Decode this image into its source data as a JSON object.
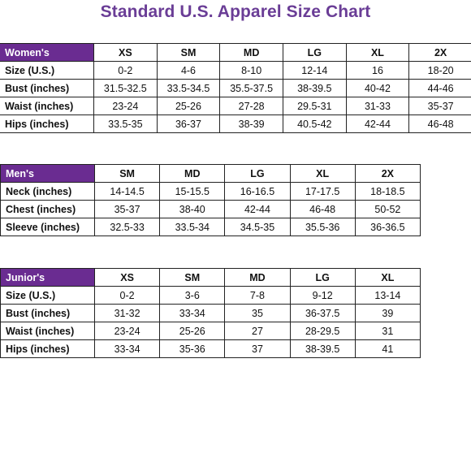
{
  "title": "Standard U.S. Apparel Size Chart",
  "colors": {
    "title": "#6a3d96",
    "header_fill": "#6a2c91",
    "header_text": "#ffffff",
    "grid": "#222222"
  },
  "tables": {
    "women": {
      "label": "Women's",
      "sizes": [
        "XS",
        "SM",
        "MD",
        "LG",
        "XL",
        "2X"
      ],
      "rows": [
        {
          "label": "Size (U.S.)",
          "values": [
            "0-2",
            "4-6",
            "8-10",
            "12-14",
            "16",
            "18-20"
          ]
        },
        {
          "label": "Bust (inches)",
          "values": [
            "31.5-32.5",
            "33.5-34.5",
            "35.5-37.5",
            "38-39.5",
            "40-42",
            "44-46"
          ]
        },
        {
          "label": "Waist (inches)",
          "values": [
            "23-24",
            "25-26",
            "27-28",
            "29.5-31",
            "31-33",
            "35-37"
          ]
        },
        {
          "label": "Hips (inches)",
          "values": [
            "33.5-35",
            "36-37",
            "38-39",
            "40.5-42",
            "42-44",
            "46-48"
          ]
        }
      ]
    },
    "men": {
      "label": "Men's",
      "sizes": [
        "SM",
        "MD",
        "LG",
        "XL",
        "2X"
      ],
      "rows": [
        {
          "label": "Neck (inches)",
          "values": [
            "14-14.5",
            "15-15.5",
            "16-16.5",
            "17-17.5",
            "18-18.5"
          ]
        },
        {
          "label": "Chest (inches)",
          "values": [
            "35-37",
            "38-40",
            "42-44",
            "46-48",
            "50-52"
          ]
        },
        {
          "label": "Sleeve (inches)",
          "values": [
            "32.5-33",
            "33.5-34",
            "34.5-35",
            "35.5-36",
            "36-36.5"
          ]
        }
      ]
    },
    "junior": {
      "label": "Junior's",
      "sizes": [
        "XS",
        "SM",
        "MD",
        "LG",
        "XL"
      ],
      "rows": [
        {
          "label": "Size (U.S.)",
          "values": [
            "0-2",
            "3-6",
            "7-8",
            "9-12",
            "13-14"
          ]
        },
        {
          "label": "Bust (inches)",
          "values": [
            "31-32",
            "33-34",
            "35",
            "36-37.5",
            "39"
          ]
        },
        {
          "label": "Waist (inches)",
          "values": [
            "23-24",
            "25-26",
            "27",
            "28-29.5",
            "31"
          ]
        },
        {
          "label": "Hips (inches)",
          "values": [
            "33-34",
            "35-36",
            "37",
            "38-39.5",
            "41"
          ]
        }
      ]
    }
  }
}
